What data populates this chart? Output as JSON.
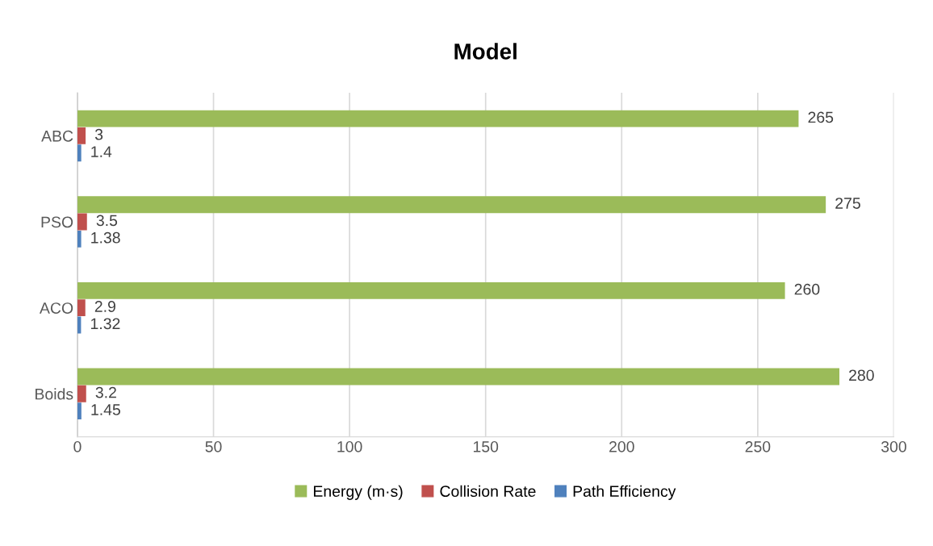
{
  "chart_data": {
    "type": "bar",
    "orientation": "horizontal",
    "title": "Model",
    "categories": [
      "ABC",
      "PSO",
      "ACO",
      "Boids"
    ],
    "series": [
      {
        "name": "Energy (m·s)",
        "color": "#9bbb59",
        "values": [
          265,
          275,
          260,
          280
        ]
      },
      {
        "name": "Collision Rate",
        "color": "#c0504d",
        "values": [
          3,
          3.5,
          2.9,
          3.2
        ]
      },
      {
        "name": "Path Efficiency",
        "color": "#4f81bd",
        "values": [
          1.4,
          1.38,
          1.32,
          1.45
        ]
      }
    ],
    "xlim": [
      0,
      300
    ],
    "xticks": [
      0,
      50,
      100,
      150,
      200,
      250,
      300
    ],
    "grid": "x",
    "legend": "bottom",
    "data_labels": true
  }
}
